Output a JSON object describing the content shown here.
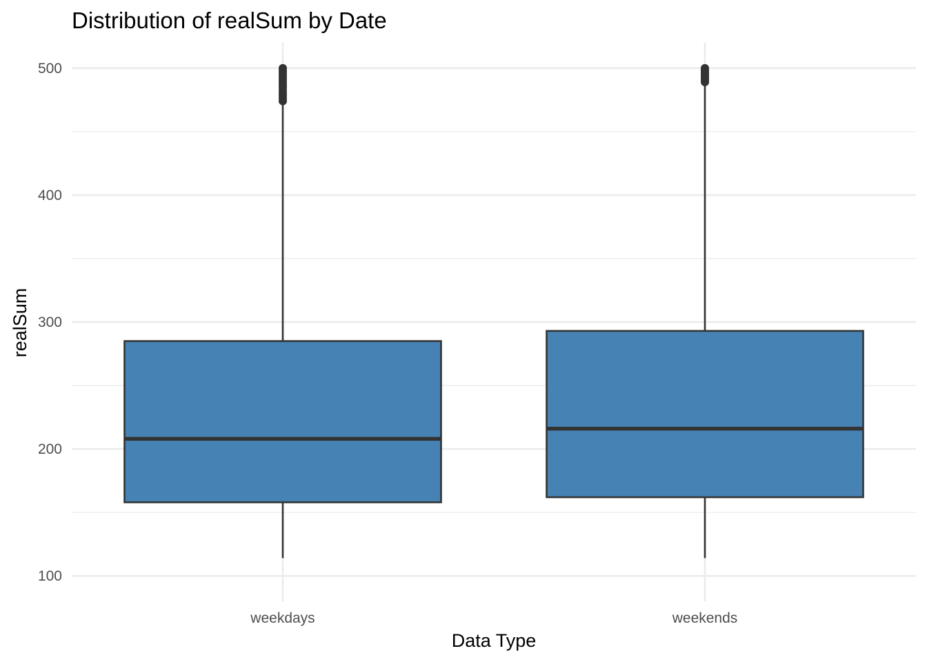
{
  "chart_data": {
    "type": "boxplot",
    "title": "Distribution of realSum by Date",
    "xlabel": "Data Type",
    "ylabel": "realSum",
    "categories": [
      "weekdays",
      "weekends"
    ],
    "boxes": [
      {
        "category": "weekdays",
        "whisker_low": 114,
        "q1": 158,
        "median": 208,
        "q3": 285,
        "whisker_high": 474,
        "outliers_from": 474,
        "outliers_to": 500
      },
      {
        "category": "weekends",
        "whisker_low": 114,
        "q1": 162,
        "median": 216,
        "q3": 293,
        "whisker_high": 489,
        "outliers_from": 489,
        "outliers_to": 500
      }
    ],
    "ylim": [
      80,
      520
    ],
    "yticks": [
      100,
      200,
      300,
      400,
      500
    ],
    "grid": true,
    "legend": "none",
    "box_fill": "#4682B4",
    "box_stroke": "#333333",
    "grid_color": "#EBEBEB"
  }
}
